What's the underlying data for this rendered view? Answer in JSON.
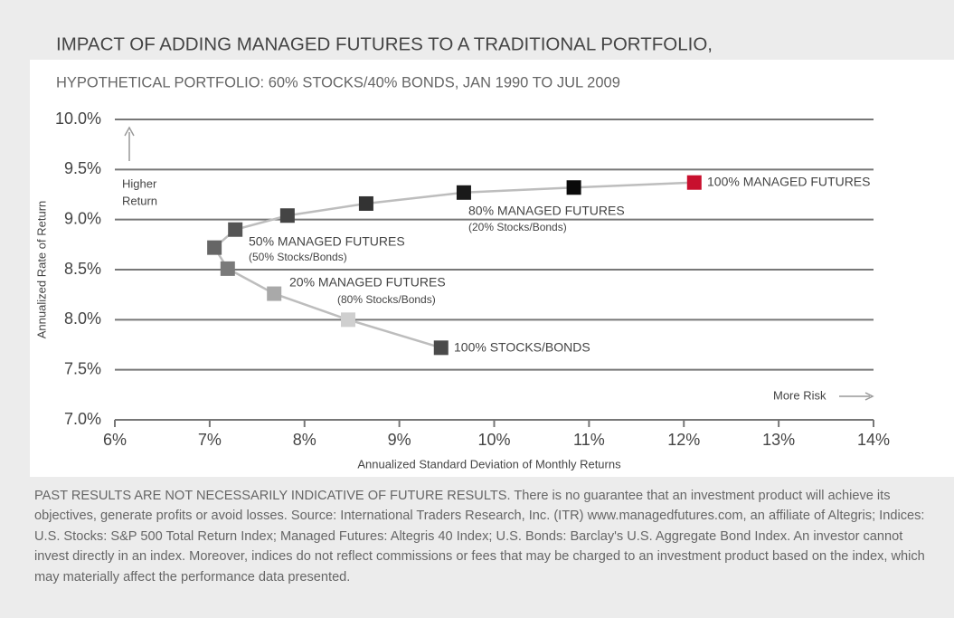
{
  "chart_data": {
    "type": "scatter",
    "title": "IMPACT OF ADDING MANAGED FUTURES TO A TRADITIONAL PORTFOLIO,",
    "subtitle": "HYPOTHETICAL PORTFOLIO: 60% STOCKS/40% BONDS, JAN 1990 TO JUL 2009",
    "x_label": "Annualized Standard Deviation of Monthly Returns",
    "y_label": "Annualized Rate of Return",
    "x": [
      9.44,
      8.46,
      7.68,
      7.19,
      7.05,
      7.27,
      7.82,
      8.65,
      9.68,
      10.84,
      12.11
    ],
    "values": [
      7.72,
      8.0,
      8.26,
      8.51,
      8.72,
      8.9,
      9.04,
      9.16,
      9.27,
      9.32,
      9.37
    ],
    "colors": [
      "#4a4a4a",
      "#cfcfcf",
      "#a9a9a9",
      "#7a7a7a",
      "#666666",
      "#555555",
      "#444444",
      "#333333",
      "#1a1a1a",
      "#0a0a0a",
      "#c8102e"
    ],
    "line_color": "#bdbdbd",
    "xlim": [
      6,
      14
    ],
    "ylim": [
      7,
      10
    ],
    "xticks": [
      {
        "value": 6,
        "label": "6%"
      },
      {
        "value": 7,
        "label": "7%"
      },
      {
        "value": 8,
        "label": "8%"
      },
      {
        "value": 9,
        "label": "9%"
      },
      {
        "value": 10,
        "label": "10%"
      },
      {
        "value": 11,
        "label": "11%"
      },
      {
        "value": 12,
        "label": "12%"
      },
      {
        "value": 13,
        "label": "13%"
      },
      {
        "value": 14,
        "label": "14%"
      }
    ],
    "yticks": [
      {
        "value": 7,
        "label": "7.0%"
      },
      {
        "value": 7.5,
        "label": "7.5%"
      },
      {
        "value": 8,
        "label": "8.0%"
      },
      {
        "value": 8.5,
        "label": "8.5%"
      },
      {
        "value": 9,
        "label": "9.0%"
      },
      {
        "value": 9.5,
        "label": "9.5%"
      },
      {
        "value": 10,
        "label": "10.0%"
      }
    ],
    "grid": true,
    "annotations": [
      "100% STOCKS/BONDS",
      "20% MANAGED FUTURES",
      "(80% Stocks/Bonds)",
      "50% MANAGED FUTURES",
      "(50% Stocks/Bonds)",
      "80% MANAGED FUTURES",
      "(20% Stocks/Bonds)",
      "100% MANAGED FUTURES",
      "Higher",
      "Return",
      "More Risk"
    ],
    "footnote": "PAST RESULTS ARE NOT NECESSARILY INDICATIVE OF FUTURE RESULTS. There is no guarantee that an investment product will achieve its objectives, generate profits or avoid losses. Source: International Traders Research, Inc. (ITR) www.managedfutures.com, an affiliate of Altegris; Indices: U.S. Stocks: S&P 500 Total Return Index; Managed Futures: Altegris 40 Index; U.S. Bonds: Barclay's U.S. Aggregate Bond Index. An investor cannot invest directly in an index. Moreover, indices do not reflect commissions or fees that may be charged to an investment product based on the index, which may materially affect the performance data presented."
  }
}
